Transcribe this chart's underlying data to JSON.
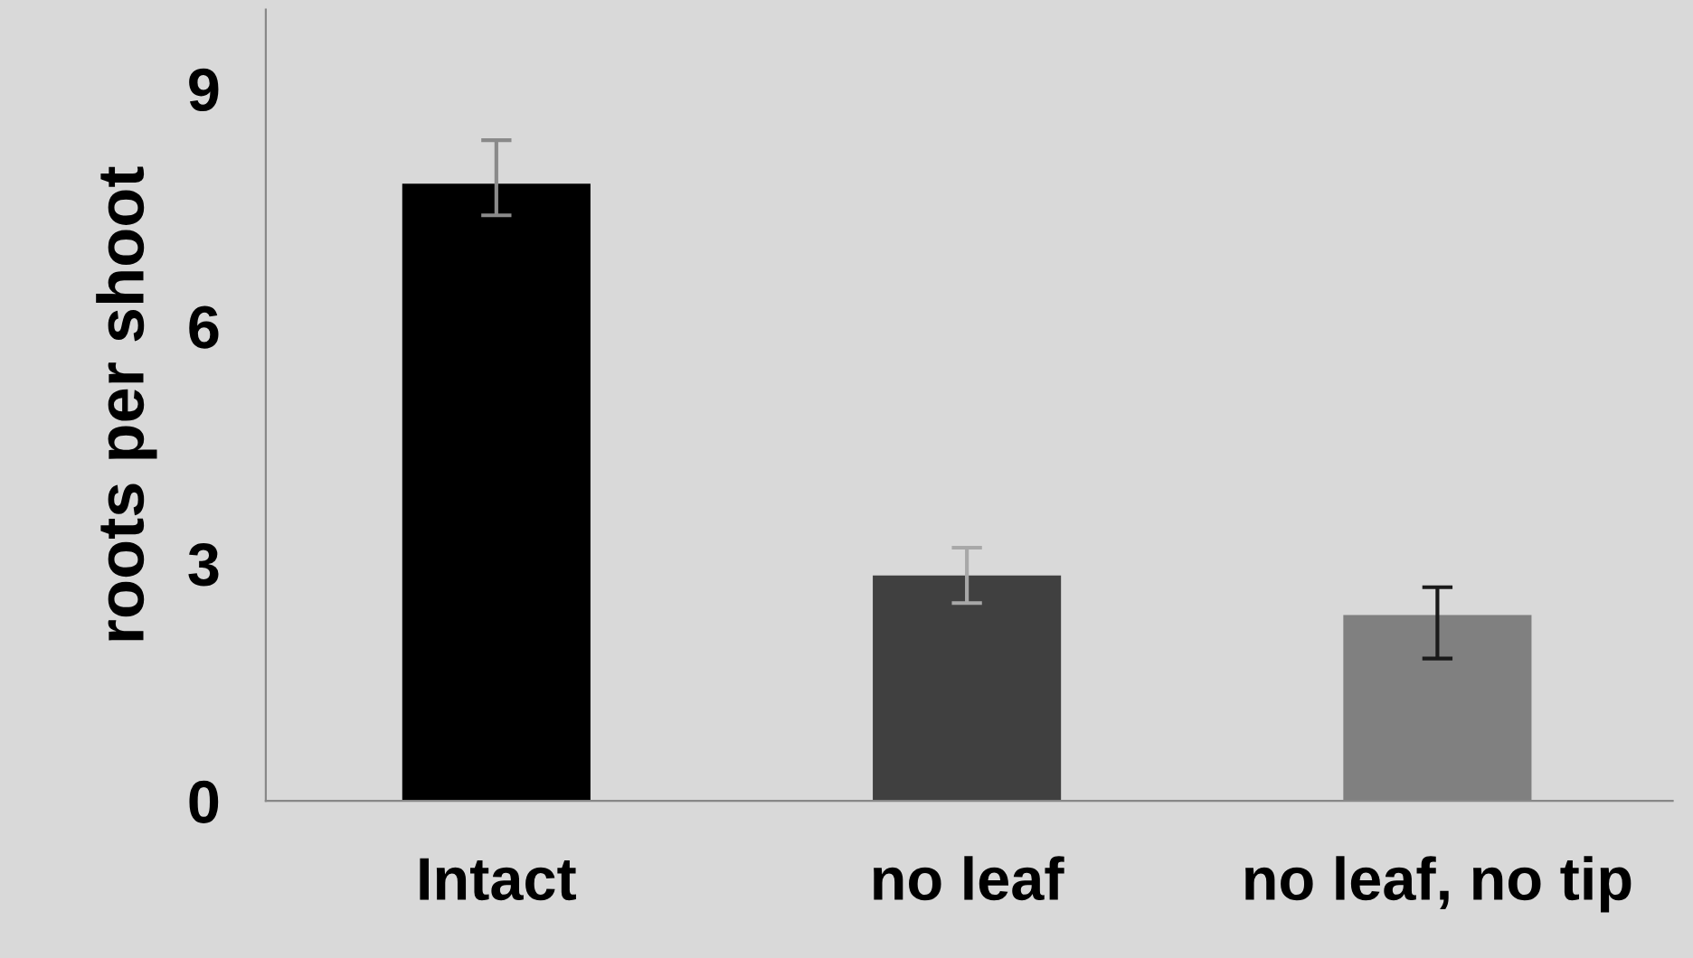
{
  "chart_data": {
    "type": "bar",
    "ylabel": "roots per shoot",
    "categories": [
      "Intact",
      "no leaf",
      "no leaf, no tip"
    ],
    "values": [
      7.8,
      2.85,
      2.35
    ],
    "errors": [
      [
        7.4,
        8.35
      ],
      [
        2.5,
        3.2
      ],
      [
        1.8,
        2.7
      ]
    ],
    "colors": [
      "#000000",
      "#404040",
      "#808080"
    ],
    "ylim": [
      0,
      10
    ],
    "yticks": [
      0,
      3,
      6,
      9
    ],
    "grid": false,
    "legend": false
  }
}
